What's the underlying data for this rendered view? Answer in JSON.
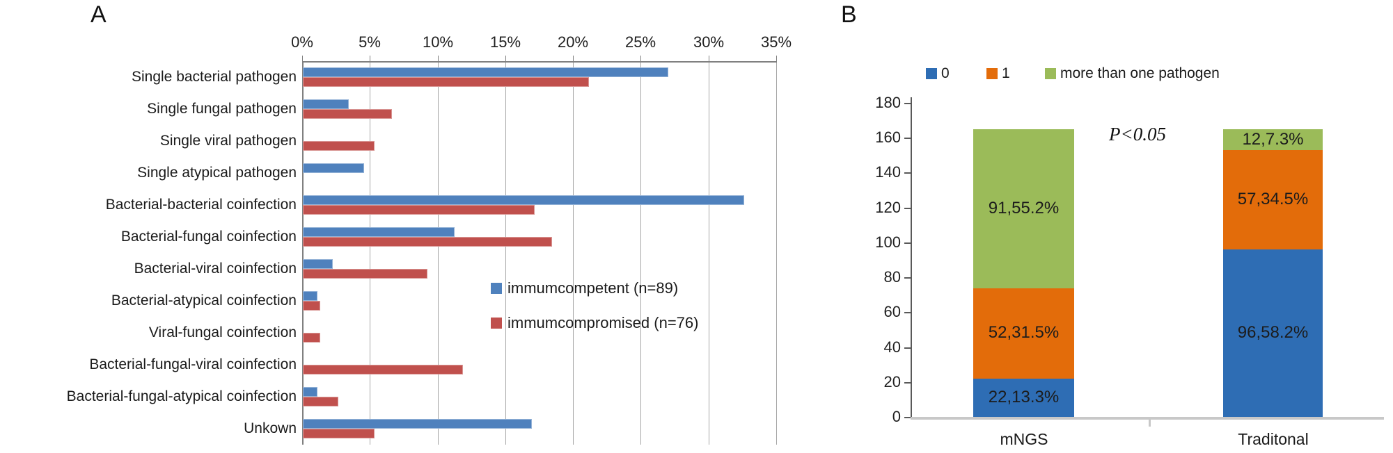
{
  "figure": {
    "panel_a_label": "A",
    "panel_b_label": "B"
  },
  "chart_data": [
    {
      "id": "A",
      "type": "bar",
      "orientation": "horizontal",
      "grouped": true,
      "title": "",
      "x_axis": {
        "position": "top",
        "min": 0,
        "max": 35,
        "tick_step": 5,
        "ticks": [
          "0%",
          "5%",
          "10%",
          "15%",
          "20%",
          "25%",
          "30%",
          "35%"
        ],
        "grid": true
      },
      "categories": [
        "Single bacterial pathogen",
        "Single fungal pathogen",
        "Single viral pathogen",
        "Single atypical pathogen",
        "Bacterial-bacterial coinfection",
        "Bacterial-fungal coinfection",
        "Bacterial-viral coinfection",
        "Bacterial-atypical coinfection",
        "Viral-fungal coinfection",
        "Bacterial-fungal-viral coinfection",
        "Bacterial-fungal-atypical coinfection",
        "Unkown"
      ],
      "series": [
        {
          "name": "immumcompetent (n=89)",
          "color": "#4F81BD",
          "edge_color": "#95B3D7",
          "values": [
            27.0,
            3.4,
            0,
            4.5,
            32.6,
            11.2,
            2.2,
            1.1,
            0,
            0,
            1.1,
            16.9
          ]
        },
        {
          "name": "immumcompromised (n=76)",
          "color": "#C0504D",
          "edge_color": "#D99694",
          "values": [
            21.1,
            6.6,
            5.3,
            0,
            17.1,
            18.4,
            9.2,
            1.3,
            1.3,
            11.8,
            2.6,
            5.3
          ]
        }
      ],
      "legend_position": "inside-right",
      "grid_color": "#A6A6A6",
      "axis_color": "#808080"
    },
    {
      "id": "B",
      "type": "bar",
      "stacked": true,
      "title": "",
      "annotation": "P<0.05",
      "y_axis": {
        "min": 0,
        "max": 180,
        "tick_step": 20,
        "ticks": [
          0,
          20,
          40,
          60,
          80,
          100,
          120,
          140,
          160,
          180
        ],
        "grid": false
      },
      "categories": [
        "mNGS",
        "Traditonal"
      ],
      "series": [
        {
          "name": "0",
          "color": "#2E6DB4",
          "values": [
            22,
            96
          ],
          "data_labels": [
            "22,13.3%",
            "96,58.2%"
          ]
        },
        {
          "name": "1",
          "color": "#E36C0A",
          "values": [
            52,
            57
          ],
          "data_labels": [
            "52,31.5%",
            "57,34.5%"
          ]
        },
        {
          "name": "more than one pathogen",
          "color": "#9BBB59",
          "values": [
            91,
            12
          ],
          "data_labels": [
            "91,55.2%",
            "12,7.3%"
          ]
        }
      ],
      "totals": [
        165,
        165
      ],
      "legend_position": "top",
      "x_axis_color": "#C8C8C8",
      "y_axis_color": "#595959"
    }
  ]
}
